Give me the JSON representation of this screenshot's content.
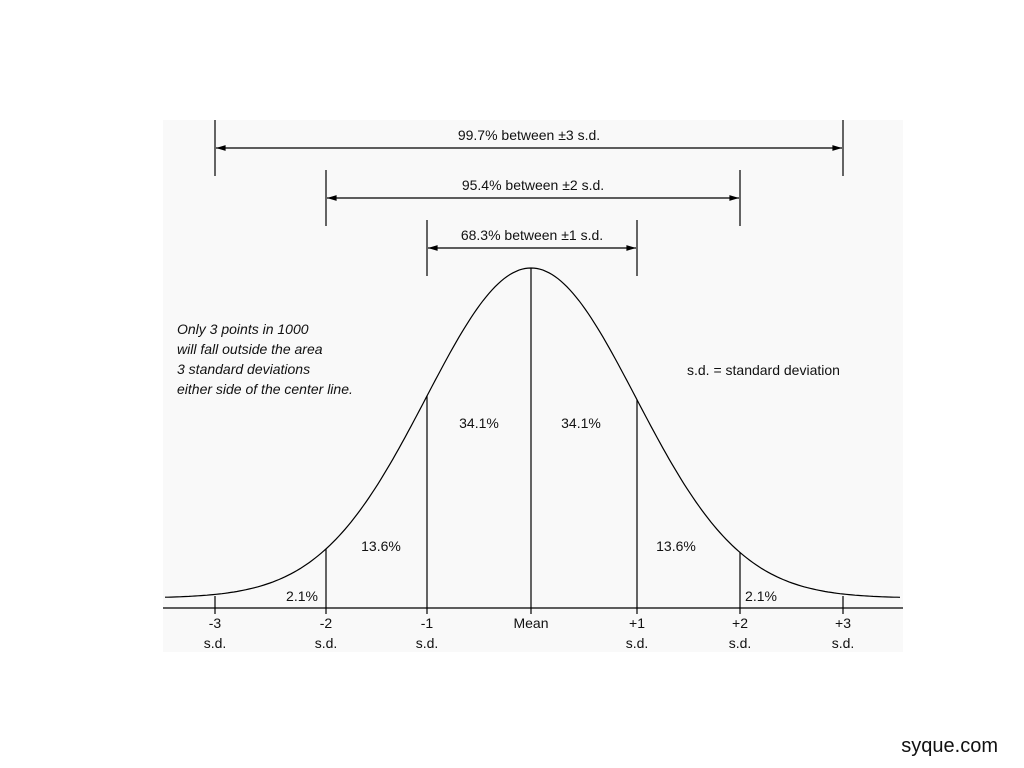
{
  "ranges": [
    {
      "label": "99.7% between  ±3 s.d."
    },
    {
      "label": "95.4% between  ±2 s.d."
    },
    {
      "label": "68.3% between  ±1 s.d."
    }
  ],
  "areas": [
    "2.1%",
    "13.6%",
    "34.1%",
    "34.1%",
    "13.6%",
    "2.1%"
  ],
  "note": [
    "Only 3 points in 1000",
    "will fall outside the area",
    "3 standard deviations",
    "either side of the center line."
  ],
  "legend": "s.d. = standard deviation",
  "axis": [
    {
      "top": "-3",
      "bottom": "s.d."
    },
    {
      "top": "-2",
      "bottom": "s.d."
    },
    {
      "top": "-1",
      "bottom": "s.d."
    },
    {
      "top": "Mean"
    },
    {
      "top": "+1",
      "bottom": "s.d."
    },
    {
      "top": "+2",
      "bottom": "s.d."
    },
    {
      "top": "+3",
      "bottom": "s.d."
    }
  ],
  "footer": "syque.com"
}
